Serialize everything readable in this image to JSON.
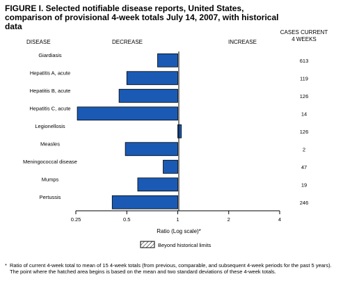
{
  "figure": {
    "title": "FIGURE I. Selected notifiable disease reports, United States, comparison of provisional 4-week totals July 14, 2007, with historical data",
    "footnote_marker": "*",
    "footnote": "Ratio of current 4-week total to mean of 15 4-week totals (from previous, comparable, and subsequent 4-week periods for the past 5 years). The point where the hatched area begins is based on the mean and two standard deviations of these 4-week totals."
  },
  "colors": {
    "bar": "#1a5ab4",
    "bar_stroke": "#000000",
    "axis": "#000000"
  },
  "chart_data": {
    "type": "bar",
    "orientation": "horizontal",
    "x_scale": "log2",
    "xlim": [
      0.25,
      4
    ],
    "xticks": [
      0.25,
      0.5,
      1,
      2,
      4
    ],
    "xtick_labels": [
      "0.25",
      "0.5",
      "1",
      "2",
      "4"
    ],
    "xlabel": "Ratio (Log scale)*",
    "headers": {
      "disease": "DISEASE",
      "decrease": "DECREASE",
      "increase": "INCREASE",
      "cases_line1": "CASES CURRENT",
      "cases_line2": "4 WEEKS"
    },
    "categories": [
      "Giardiasis",
      "Hepatitis A, acute",
      "Hepatitis B, acute",
      "Hepatitis C, acute",
      "Legionellosis",
      "Measles",
      "Meningococcal disease",
      "Mumps",
      "Pertussis"
    ],
    "values": [
      0.76,
      0.5,
      0.45,
      0.255,
      1.05,
      0.49,
      0.82,
      0.58,
      0.41
    ],
    "cases": [
      "613",
      "119",
      "126",
      "14",
      "126",
      "2",
      "47",
      "19",
      "246"
    ],
    "legend": {
      "label": "Beyond historical limits",
      "pattern": "hatched"
    },
    "grid": false
  }
}
